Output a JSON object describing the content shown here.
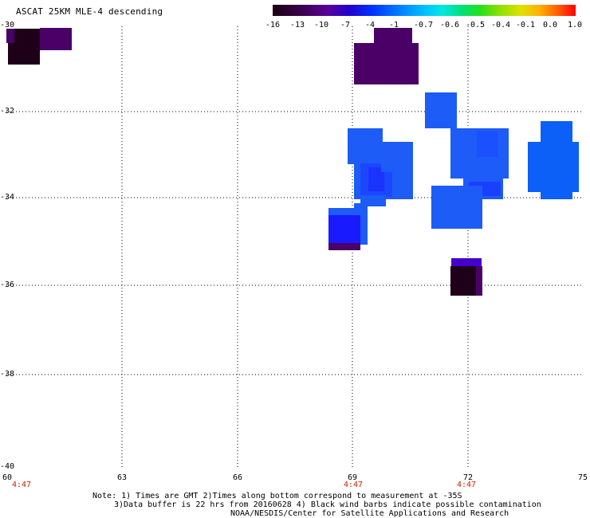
{
  "title": "ASCAT 25KM MLE-4 descending",
  "colorbar": {
    "labels": [
      "-16",
      "-13",
      "-10",
      "-7",
      "-4",
      "-1",
      "-0.7",
      "-0.6",
      "-0.5",
      "-0.4",
      "-0.1",
      "0.0",
      "1.0"
    ],
    "colors": [
      "#1a0010",
      "#3c0050",
      "#5a0099",
      "#2200cc",
      "#0033ff",
      "#0080ff",
      "#00c0ff",
      "#00e8e0",
      "#00e080",
      "#20e020",
      "#90e000",
      "#e0e000",
      "#ffb000",
      "#ff6000",
      "#ff0000"
    ]
  },
  "axes": {
    "lat_labels": [
      "-30",
      "-32",
      "-34",
      "-36",
      "-38",
      "-40"
    ],
    "lon_labels": [
      "60",
      "63",
      "66",
      "69",
      "72",
      "75"
    ],
    "time_labels": [
      "4:47",
      "4:47",
      "4:47"
    ]
  },
  "notes": {
    "line1": "Note: 1) Times are GMT 2)Times along bottom correspond to measurement at -35S",
    "line2": "3)Data buffer is 22 hrs from 20160628 4) Black wind barbs indicate possible contamination",
    "line3": "NOAA/NESDIS/Center for Satellite Applications and Research"
  },
  "legend_colors": {
    "near_black": "#1e0018",
    "dark_purple": "#4a0066",
    "purple": "#5a0099",
    "violet": "#4400cc",
    "blue": "#1a1aff",
    "mid_blue": "#1d5cf6",
    "light_blue": "#0c5ff7"
  }
}
